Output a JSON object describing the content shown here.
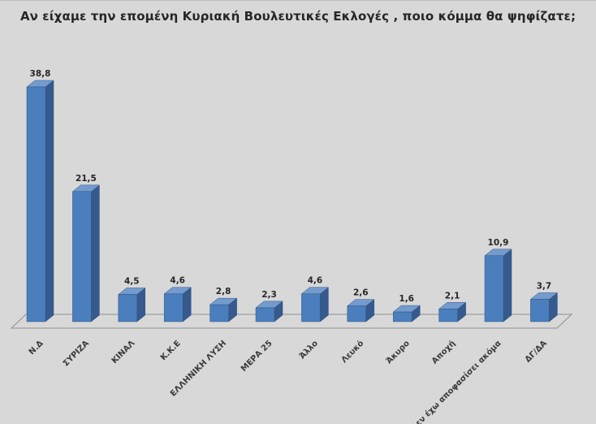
{
  "page": {
    "background_color": "#d8d8d8"
  },
  "title": "Αν είχαμε την επομένη Κυριακή Βουλευτικές Εκλογές , ποιο κόμμα θα ψηφίζατε;",
  "chart_data": {
    "type": "bar",
    "style": "3d-column",
    "title": "Αν είχαμε την επομένη Κυριακή Βουλευτικές Εκλογές , ποιο κόμμα θα ψηφίζατε;",
    "categories": [
      "Ν.Δ",
      "ΣΥΡΙΖΑ",
      "ΚΙΝΑΛ",
      "Κ.Κ.Ε",
      "ΕΛΛΗΝΙΚΗ ΛΥΣΗ",
      "ΜΕΡΑ 25",
      "Άλλο",
      "Λευκό",
      "Άκυρο",
      "Αποχή",
      "Δεν έχω αποφασίσει ακόμα",
      "ΔΓ/ΔΑ"
    ],
    "values": [
      38.8,
      21.5,
      4.5,
      4.6,
      2.8,
      2.3,
      4.6,
      2.6,
      1.6,
      2.1,
      10.9,
      3.7
    ],
    "value_labels": [
      "38,8",
      "21,5",
      "4,5",
      "4,6",
      "2,8",
      "2,3",
      "4,6",
      "2,6",
      "1,6",
      "2,1",
      "10,9",
      "3,7"
    ],
    "xlabel": "",
    "ylabel": "",
    "ylim": [
      0,
      40
    ],
    "grid": false,
    "legend": "none",
    "data_labels": "above-bars",
    "category_label_rotation_deg": -45,
    "colors": {
      "bar_front": "#4a7ebc",
      "bar_side": "#36598e",
      "bar_top": "#739bce",
      "bar_outline": "#305580",
      "floor_fill": "#d8d8d8",
      "floor_stroke": "#8f8f8f",
      "value_label": "#262626",
      "category_label": "#3a3a3a",
      "title": "#262626"
    }
  }
}
